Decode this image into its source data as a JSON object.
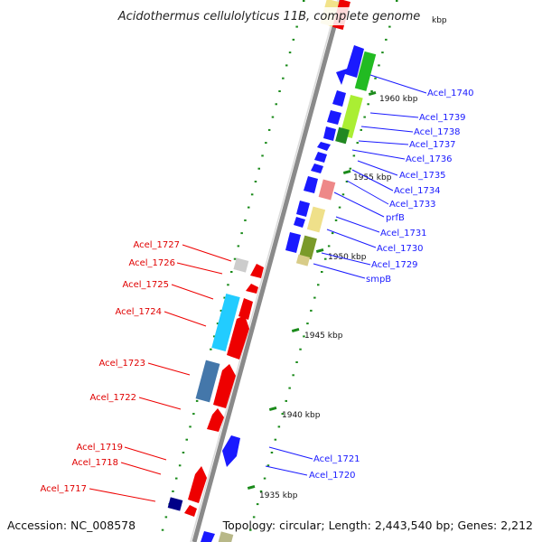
{
  "title": "Acidothermus cellulolyticus 11B, complete genome",
  "footer": {
    "accession": "Accession: NC_008578",
    "topology": "Topology: circular; Length: 2,443,540 bp; Genes: 2,212"
  },
  "ticks": [
    "1935 kbp",
    "1940 kbp",
    "1945 kbp",
    "1950 kbp",
    "1955 kbp",
    "1960 kbp",
    "kbp"
  ],
  "genes_right": [
    "Acel_1740",
    "Acel_1739",
    "Acel_1738",
    "Acel_1737",
    "Acel_1736",
    "Acel_1735",
    "Acel_1734",
    "Acel_1733",
    "prfB",
    "Acel_1731",
    "Acel_1730",
    "Acel_1729",
    "smpB",
    "Acel_1721",
    "Acel_1720"
  ],
  "genes_left": [
    "Acel_1727",
    "Acel_1726",
    "Acel_1725",
    "Acel_1724",
    "Acel_1723",
    "Acel_1722",
    "Acel_1719",
    "Acel_1718",
    "Acel_1717"
  ],
  "colors": {
    "forward_strand": "#1a1aff",
    "reverse_strand": "#ee0000",
    "backbone": "#999999",
    "tick_marks": "#1a8a1a"
  }
}
